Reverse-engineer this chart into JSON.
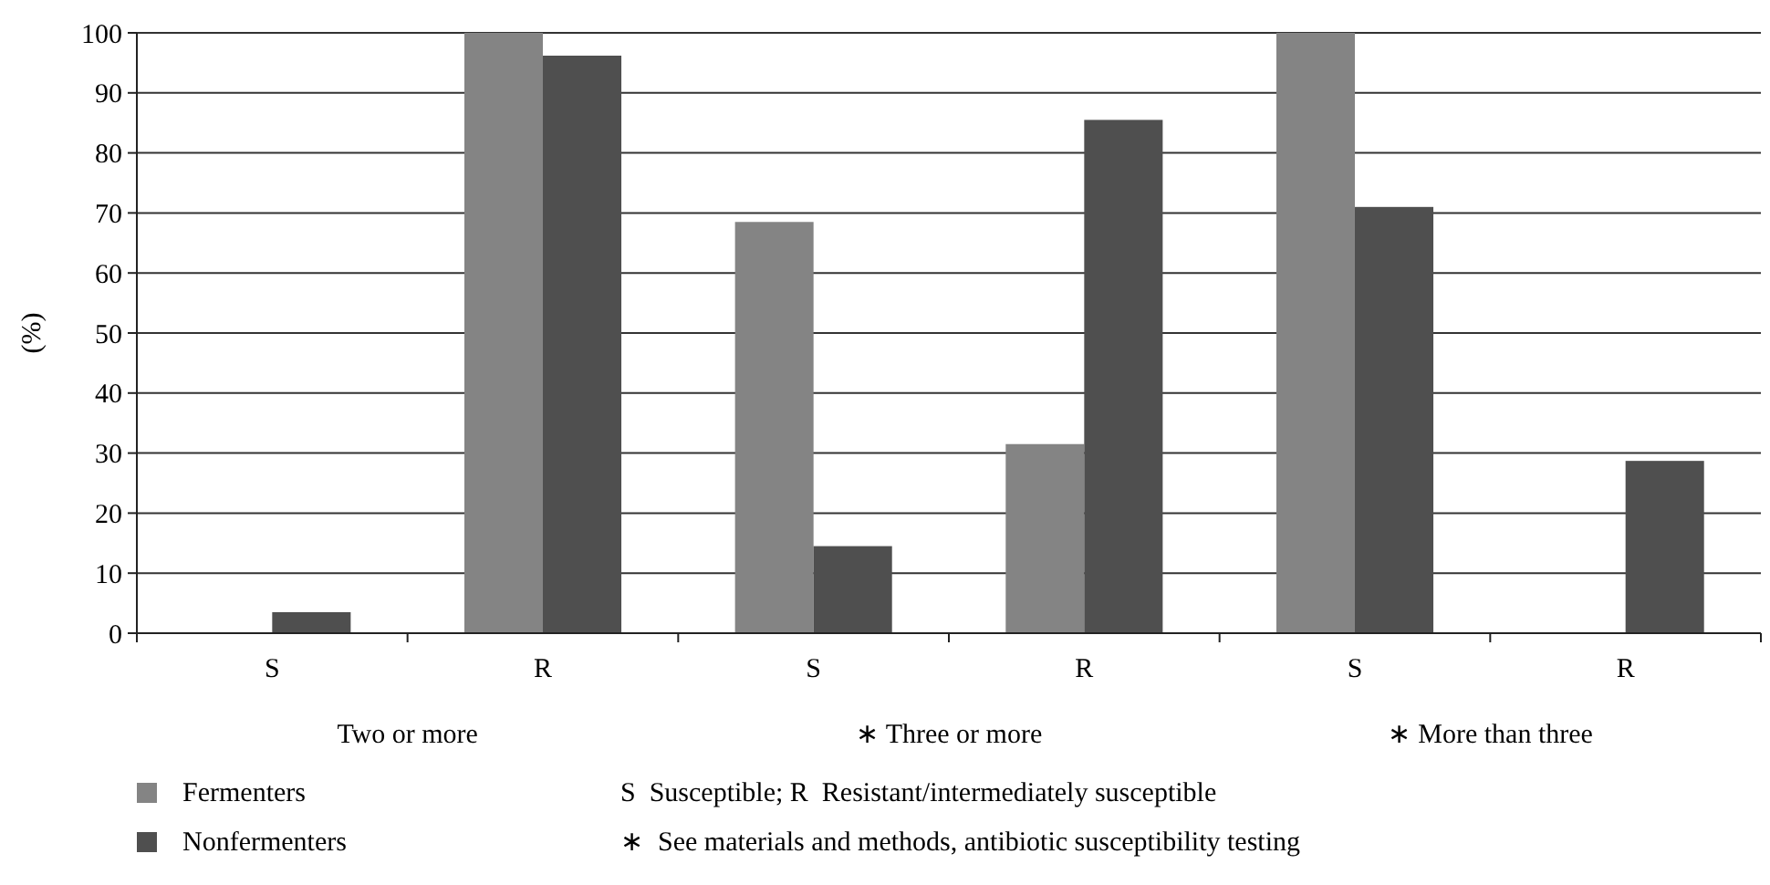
{
  "chart_data": {
    "type": "bar",
    "ylabel": "(%)",
    "categories": [
      "S",
      "R",
      "S",
      "R",
      "S",
      "R"
    ],
    "series": [
      {
        "name": "Fermenters",
        "color": "#848484",
        "values": [
          0,
          100,
          68.5,
          31.5,
          100,
          0
        ]
      },
      {
        "name": "Nonfermenters",
        "color": "#4f4f4f",
        "values": [
          3.5,
          96.2,
          14.5,
          85.5,
          71,
          28.7
        ]
      }
    ],
    "ylim": [
      0,
      100
    ],
    "yticks": [
      0,
      10,
      20,
      30,
      40,
      50,
      60,
      70,
      80,
      90,
      100
    ],
    "grid": "y",
    "legend": "bottom left",
    "annotations": [
      "Two or more",
      "∗ Three or more",
      "∗ More than three",
      "S  Susceptible; R  Resistant/intermediately susceptible",
      "∗  See materials and methods, antibiotic susceptibility testing"
    ]
  }
}
